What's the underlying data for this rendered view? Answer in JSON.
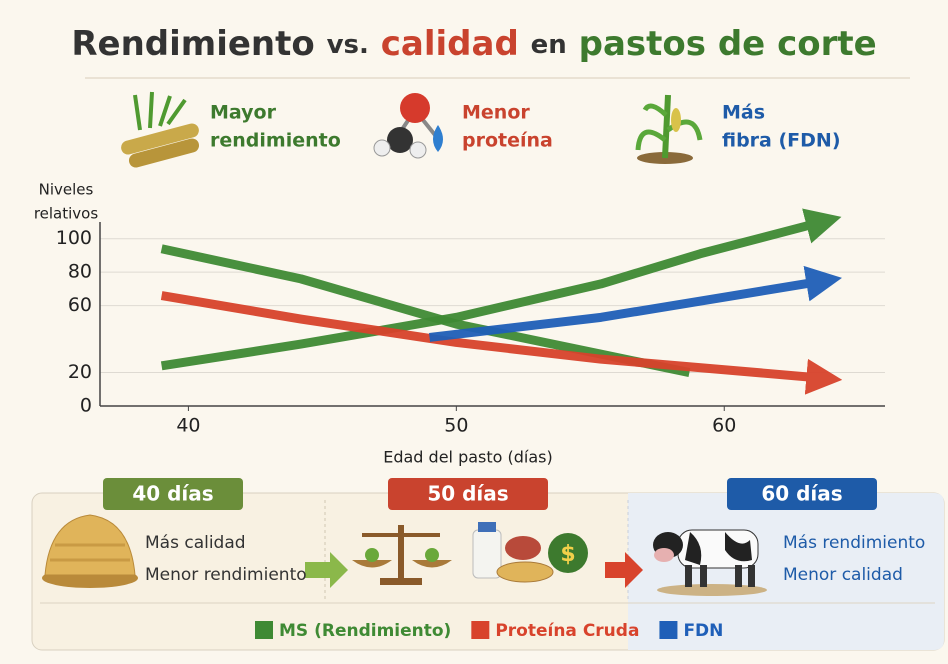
{
  "title": [
    {
      "text": "Rendimiento",
      "color": "#333333"
    },
    {
      "text": "vs.",
      "color": "#333333"
    },
    {
      "text": "calidad",
      "color": "#c9432e"
    },
    {
      "text": "en",
      "color": "#333333"
    },
    {
      "text": "pastos de corte",
      "color": "#3d7a2e"
    }
  ],
  "highlights": [
    {
      "lines": [
        "Mayor",
        "rendimiento"
      ],
      "color": "#3d7a2e"
    },
    {
      "lines": [
        "Menor",
        "proteína"
      ],
      "color": "#c9432e"
    },
    {
      "lines": [
        "Más",
        "fibra (FDN)"
      ],
      "color": "#1e5ba8"
    }
  ],
  "chart_data": {
    "type": "line",
    "y_label": [
      "Niveles",
      "relativos"
    ],
    "x_label": "Edad del pasto (días)",
    "xlim": [
      36.7,
      66
    ],
    "xticks": [
      40,
      50,
      60
    ],
    "ylim": [
      0,
      110
    ],
    "yticks": [
      100,
      80,
      60,
      20,
      0
    ],
    "grid": true,
    "series": [
      {
        "name": "MS (Rendimiento)",
        "color": "#3f8a34",
        "arrow": true,
        "x": [
          39,
          44.2,
          50,
          55.4,
          59.1,
          63.4
        ],
        "values": [
          24,
          37,
          53,
          73,
          91,
          109
        ]
      },
      {
        "color": "#3f8a34",
        "arrow": false,
        "x": [
          39,
          44.2,
          50,
          55.4,
          58.7
        ],
        "values": [
          94,
          76,
          49,
          31,
          20
        ]
      },
      {
        "name": "Proteína Cruda",
        "color": "#d8432c",
        "arrow": true,
        "x": [
          39,
          44.2,
          50,
          55.4,
          63.4
        ],
        "values": [
          66,
          52,
          38,
          28,
          17
        ]
      },
      {
        "name": "FDN",
        "color": "#1f5fb8",
        "arrow": true,
        "x": [
          49,
          55.4,
          63.4
        ],
        "values": [
          41,
          53,
          74
        ]
      }
    ]
  },
  "stages": [
    {
      "label": "40 días",
      "color": "#6b8e3a",
      "note_color": "#333333",
      "notes": [
        "Más calidad",
        "Menor rendimiento"
      ]
    },
    {
      "label": "50 días",
      "color": "#c9432e"
    },
    {
      "label": "60 días",
      "color": "#1e5ba8",
      "note_color": "#1e5ba8",
      "notes": [
        "Más rendimiento",
        "Menor calidad"
      ]
    }
  ]
}
